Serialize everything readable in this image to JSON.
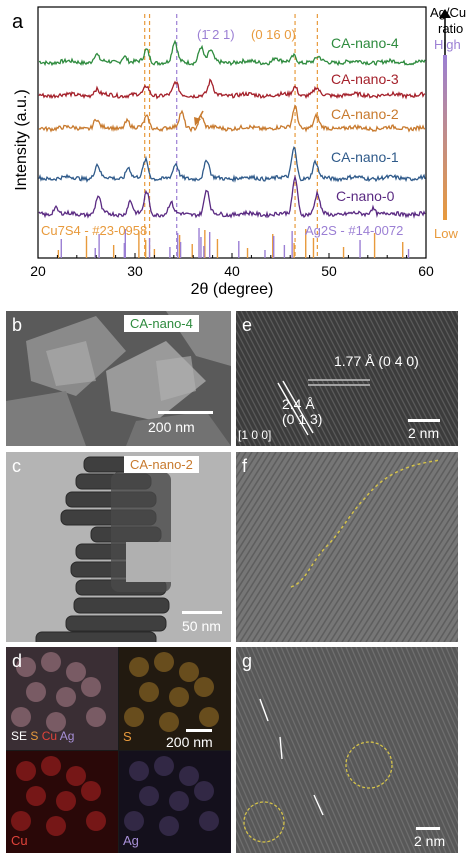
{
  "panel_a": {
    "letter": "a",
    "ylabel": "Intensity (a.u.)",
    "xlabel": "2θ (degree)",
    "xticks": [
      "20",
      "30",
      "40",
      "50",
      "60"
    ],
    "peak_label_1": "(1̄ 2 1)",
    "peak_label_2": "(0 16 0)",
    "ref_left": "Cu7S4 - #23-0958",
    "ref_right": "Ag2S - #14-0072",
    "ratio_title_1": "Ag/Cu",
    "ratio_title_2": "ratio",
    "ratio_high": "High",
    "ratio_low": "Low"
  },
  "chart_data": {
    "type": "line",
    "xlabel": "2θ (degree)",
    "ylabel": "Intensity (a.u.)",
    "xlim": [
      20,
      60
    ],
    "yticks": "none",
    "series": [
      {
        "name": "CA-nano-4",
        "color": "#2e8b3e",
        "peaks": [
          [
            26.0,
            0.35
          ],
          [
            28.9,
            0.3
          ],
          [
            31.2,
            0.55
          ],
          [
            34.1,
            0.9
          ],
          [
            36.8,
            0.7
          ],
          [
            37.8,
            0.5
          ],
          [
            44.5,
            0.2
          ],
          [
            46.4,
            0.3
          ],
          [
            48.9,
            0.2
          ]
        ]
      },
      {
        "name": "CA-nano-3",
        "color": "#a4202a",
        "peaks": [
          [
            26.0,
            0.25
          ],
          [
            31.2,
            0.4
          ],
          [
            34.2,
            0.55
          ],
          [
            37.8,
            0.6
          ],
          [
            46.5,
            0.4
          ],
          [
            48.7,
            0.3
          ]
        ]
      },
      {
        "name": "CA-nano-2",
        "color": "#c87a2e",
        "peaks": [
          [
            26.0,
            0.4
          ],
          [
            29.2,
            0.35
          ],
          [
            31.2,
            0.5
          ],
          [
            34.8,
            0.7
          ],
          [
            36.8,
            0.55
          ],
          [
            46.5,
            1.0
          ],
          [
            48.7,
            0.5
          ]
        ]
      },
      {
        "name": "CA-nano-1",
        "color": "#2f5a8a",
        "peaks": [
          [
            26.1,
            0.6
          ],
          [
            29.3,
            0.5
          ],
          [
            31.1,
            0.8
          ],
          [
            34.2,
            0.6
          ],
          [
            37.4,
            0.8
          ],
          [
            46.4,
            1.4
          ],
          [
            48.6,
            0.7
          ]
        ]
      },
      {
        "name": "C-nano-0",
        "color": "#5a2a82",
        "peaks": [
          [
            21.8,
            0.3
          ],
          [
            26.2,
            0.8
          ],
          [
            29.5,
            0.6
          ],
          [
            31.2,
            1.0
          ],
          [
            33.7,
            0.5
          ],
          [
            37.4,
            1.1
          ],
          [
            46.5,
            1.7
          ],
          [
            48.8,
            0.9
          ],
          [
            54.5,
            0.3
          ]
        ]
      }
    ],
    "dashed_lines": [
      {
        "x": 31.0,
        "color": "#e89a3c"
      },
      {
        "x": 31.5,
        "color": "#e89a3c"
      },
      {
        "x": 34.3,
        "color": "#9b7fd4"
      },
      {
        "x": 46.5,
        "color": "#e89a3c"
      },
      {
        "x": 48.8,
        "color": "#e89a3c"
      }
    ],
    "reference_sticks": [
      {
        "name": "Cu7S4 - #23-0958",
        "color": "#e89a3c",
        "x": [
          22.1,
          25.0,
          27.8,
          30.4,
          31.1,
          32.0,
          34.6,
          35.9,
          37.2,
          38.5,
          41.6,
          44.2,
          46.4,
          47.6,
          48.4,
          51.5,
          54.7,
          57.6
        ]
      },
      {
        "name": "Ag2S - #14-0072",
        "color": "#9b7fd4",
        "x": [
          22.4,
          25.9,
          26.3,
          28.9,
          29.0,
          31.5,
          33.6,
          34.4,
          34.7,
          36.6,
          36.8,
          37.1,
          37.7,
          40.7,
          43.4,
          44.3,
          45.4,
          46.2,
          53.2,
          58.2
        ]
      }
    ]
  },
  "panel_b": {
    "letter": "b",
    "tag": "CA-nano-4",
    "scale": "200 nm"
  },
  "panel_c": {
    "letter": "c",
    "tag": "CA-nano-2",
    "scale": "50 nm"
  },
  "panel_d": {
    "letter": "d",
    "scale": "200 nm",
    "se": "SE",
    "s": "S",
    "cu": "Cu",
    "ag": "Ag",
    "s_label": "S",
    "cu_label": "Cu",
    "ag_label": "Ag"
  },
  "panel_e": {
    "letter": "e",
    "d1": "1.77 Å (0 4 0)",
    "d2a": "2.4 Å",
    "d2b": "(0 1 3)",
    "zone": "[1 0 0]",
    "scale": "2 nm"
  },
  "panel_f": {
    "letter": "f"
  },
  "panel_g": {
    "letter": "g",
    "scale": "2 nm"
  }
}
